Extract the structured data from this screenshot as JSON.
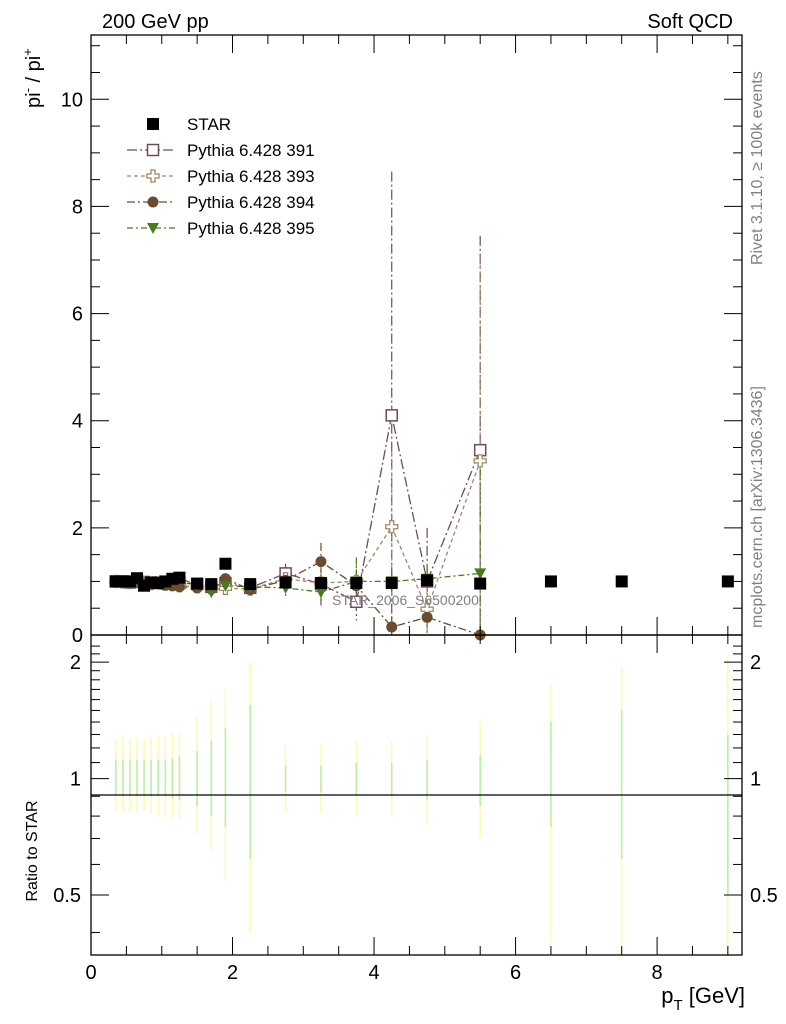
{
  "header": {
    "left": "200 GeV pp",
    "right": "Soft QCD"
  },
  "side_labels": {
    "rivet": "Rivet 3.1.10, ≥ 100k events",
    "mcplots": "mcplots.cern.ch [arXiv:1306.3436]"
  },
  "watermark": "STAR_2006_S6500200",
  "chart_data": [
    {
      "type": "scatter",
      "panel": "main",
      "ylabel_base": "pi",
      "ylabel_sup1": "-",
      "ylabel_sep": " / pi",
      "ylabel_sup2": "+",
      "xlim": [
        0,
        9.2
      ],
      "ylim": [
        0,
        11.2
      ],
      "yticks": [
        0,
        2,
        4,
        6,
        8,
        10
      ],
      "legend_position": "top-left",
      "legend": [
        {
          "name": "STAR",
          "color": "#000000",
          "marker": "square-filled"
        },
        {
          "name": "Pythia 6.428 391",
          "color": "#6f4a5c",
          "marker": "square-open"
        },
        {
          "name": "Pythia 6.428 393",
          "color": "#a08864",
          "marker": "cross-open"
        },
        {
          "name": "Pythia 6.428 394",
          "color": "#6b4c2e",
          "marker": "circle-filled"
        },
        {
          "name": "Pythia 6.428 395",
          "color": "#4a7a1e",
          "marker": "triangle-down"
        }
      ],
      "series": [
        {
          "name": "STAR",
          "x": [
            0.35,
            0.45,
            0.55,
            0.65,
            0.75,
            0.85,
            0.95,
            1.05,
            1.15,
            1.25,
            1.5,
            1.7,
            1.9,
            2.25,
            2.75,
            3.25,
            3.75,
            4.25,
            4.75,
            5.5,
            6.5,
            7.5,
            9.0
          ],
          "y": [
            1.0,
            1.0,
            1.0,
            1.06,
            0.92,
            0.98,
            0.97,
            1.0,
            1.05,
            1.07,
            0.96,
            0.95,
            1.33,
            0.95,
            0.98,
            0.97,
            0.97,
            0.97,
            1.02,
            0.96,
            1.0,
            1.0,
            1.0
          ]
        },
        {
          "name": "Pythia 6.428 391",
          "x": [
            0.35,
            0.45,
            0.55,
            0.65,
            0.75,
            0.85,
            0.95,
            1.05,
            1.15,
            1.25,
            1.5,
            1.7,
            1.9,
            2.25,
            2.75,
            3.25,
            3.75,
            4.25,
            4.75,
            5.5
          ],
          "y": [
            1.0,
            1.0,
            0.98,
            1.02,
            0.99,
            0.97,
            0.98,
            0.96,
            0.99,
            0.97,
            0.95,
            0.9,
            0.97,
            0.88,
            1.15,
            0.95,
            0.62,
            4.1,
            1.0,
            3.45
          ],
          "err": [
            0.05,
            0.05,
            0.05,
            0.05,
            0.05,
            0.05,
            0.05,
            0.05,
            0.06,
            0.06,
            0.07,
            0.08,
            0.1,
            0.12,
            0.18,
            0.4,
            0.35,
            4.55,
            1.0,
            4.0
          ]
        },
        {
          "name": "Pythia 6.428 393",
          "x": [
            0.35,
            0.45,
            0.55,
            0.65,
            0.75,
            0.85,
            0.95,
            1.05,
            1.15,
            1.25,
            1.5,
            1.7,
            1.9,
            2.25,
            2.75,
            3.25,
            3.75,
            4.25,
            4.75,
            5.5
          ],
          "y": [
            1.0,
            0.99,
            0.98,
            1.0,
            0.97,
            0.96,
            0.97,
            0.95,
            0.94,
            0.92,
            0.9,
            0.88,
            0.87,
            0.86,
            1.05,
            0.97,
            1.0,
            2.02,
            0.48,
            3.25
          ],
          "err": [
            0.05,
            0.05,
            0.05,
            0.05,
            0.05,
            0.05,
            0.05,
            0.05,
            0.06,
            0.06,
            0.07,
            0.08,
            0.1,
            0.12,
            0.18,
            0.35,
            0.35,
            1.4,
            0.45,
            3.8
          ]
        },
        {
          "name": "Pythia 6.428 394",
          "x": [
            0.35,
            0.45,
            0.55,
            0.65,
            0.75,
            0.85,
            0.95,
            1.05,
            1.15,
            1.25,
            1.5,
            1.7,
            1.9,
            2.25,
            2.75,
            3.25,
            3.75,
            4.25,
            4.75,
            5.5
          ],
          "y": [
            0.99,
            0.98,
            0.97,
            0.98,
            0.96,
            0.95,
            0.96,
            0.93,
            0.92,
            0.9,
            0.88,
            0.86,
            1.05,
            0.85,
            1.02,
            1.37,
            0.92,
            0.15,
            0.33,
            0.0
          ],
          "err": [
            0.05,
            0.05,
            0.05,
            0.05,
            0.05,
            0.05,
            0.05,
            0.05,
            0.06,
            0.06,
            0.07,
            0.08,
            0.1,
            0.12,
            0.15,
            0.35,
            0.3,
            0.2,
            0.15,
            0.0
          ]
        },
        {
          "name": "Pythia 6.428 395",
          "x": [
            0.35,
            0.45,
            0.55,
            0.65,
            0.75,
            0.85,
            0.95,
            1.05,
            1.15,
            1.25,
            1.5,
            1.7,
            1.9,
            2.25,
            2.75,
            3.25,
            3.75,
            4.25,
            4.75,
            5.5
          ],
          "y": [
            1.0,
            1.01,
            0.99,
            1.01,
            0.98,
            0.99,
            0.98,
            1.0,
            1.05,
            1.06,
            0.93,
            0.8,
            0.92,
            0.9,
            0.88,
            0.8,
            1.0,
            1.0,
            1.05,
            1.15
          ],
          "err": [
            0.05,
            0.05,
            0.05,
            0.05,
            0.05,
            0.05,
            0.05,
            0.05,
            0.06,
            0.06,
            0.07,
            0.08,
            0.1,
            0.12,
            0.15,
            0.2,
            0.45,
            0.2,
            0.2,
            2.2
          ]
        }
      ]
    },
    {
      "type": "scatter",
      "panel": "ratio",
      "ylabel": "Ratio to STAR",
      "xlabel_base": "p",
      "xlabel_sub": "T",
      "xlabel_unit": " [GeV]",
      "xlim": [
        0,
        9.2
      ],
      "ylim": [
        0.35,
        2.35
      ],
      "log_y": true,
      "yticks": [
        0.5,
        1,
        2
      ],
      "ytick_labels": [
        "0.5",
        "1",
        "2"
      ],
      "xticks": [
        0,
        2,
        4,
        6,
        8
      ],
      "xtick_labels": [
        "0",
        "2",
        "4",
        "6",
        "8"
      ],
      "reference_line": 1,
      "bands": {
        "x": [
          0.35,
          0.45,
          0.55,
          0.65,
          0.75,
          0.85,
          0.95,
          1.05,
          1.15,
          1.25,
          1.5,
          1.7,
          1.9,
          2.25,
          2.75,
          3.25,
          3.75,
          4.25,
          4.75,
          5.5,
          6.5,
          7.5,
          9.0
        ],
        "inner": [
          [
            0.9,
            1.12
          ],
          [
            0.9,
            1.12
          ],
          [
            0.9,
            1.12
          ],
          [
            0.9,
            1.12
          ],
          [
            0.9,
            1.12
          ],
          [
            0.9,
            1.12
          ],
          [
            0.9,
            1.12
          ],
          [
            0.9,
            1.12
          ],
          [
            0.89,
            1.13
          ],
          [
            0.88,
            1.14
          ],
          [
            0.85,
            1.18
          ],
          [
            0.8,
            1.25
          ],
          [
            0.75,
            1.35
          ],
          [
            0.62,
            1.55
          ],
          [
            0.92,
            1.08
          ],
          [
            0.92,
            1.08
          ],
          [
            0.9,
            1.1
          ],
          [
            0.9,
            1.1
          ],
          [
            0.88,
            1.12
          ],
          [
            0.85,
            1.15
          ],
          [
            0.75,
            1.4
          ],
          [
            0.62,
            1.5
          ],
          [
            0.5,
            1.3
          ]
        ],
        "outer": [
          [
            0.82,
            1.27
          ],
          [
            0.82,
            1.27
          ],
          [
            0.82,
            1.27
          ],
          [
            0.82,
            1.27
          ],
          [
            0.82,
            1.27
          ],
          [
            0.81,
            1.28
          ],
          [
            0.8,
            1.29
          ],
          [
            0.8,
            1.29
          ],
          [
            0.79,
            1.31
          ],
          [
            0.78,
            1.32
          ],
          [
            0.72,
            1.45
          ],
          [
            0.65,
            1.6
          ],
          [
            0.55,
            1.7
          ],
          [
            0.4,
            2.0
          ],
          [
            0.82,
            1.22
          ],
          [
            0.82,
            1.22
          ],
          [
            0.8,
            1.25
          ],
          [
            0.8,
            1.25
          ],
          [
            0.76,
            1.3
          ],
          [
            0.7,
            1.4
          ],
          [
            0.38,
            1.75
          ],
          [
            0.35,
            1.95
          ],
          [
            0.35,
            2.1
          ]
        ]
      }
    }
  ],
  "colors": {
    "band_inner": "#b8f0a8",
    "band_outer": "#fffbb0",
    "axis": "#000000",
    "side_text": "#808080"
  }
}
